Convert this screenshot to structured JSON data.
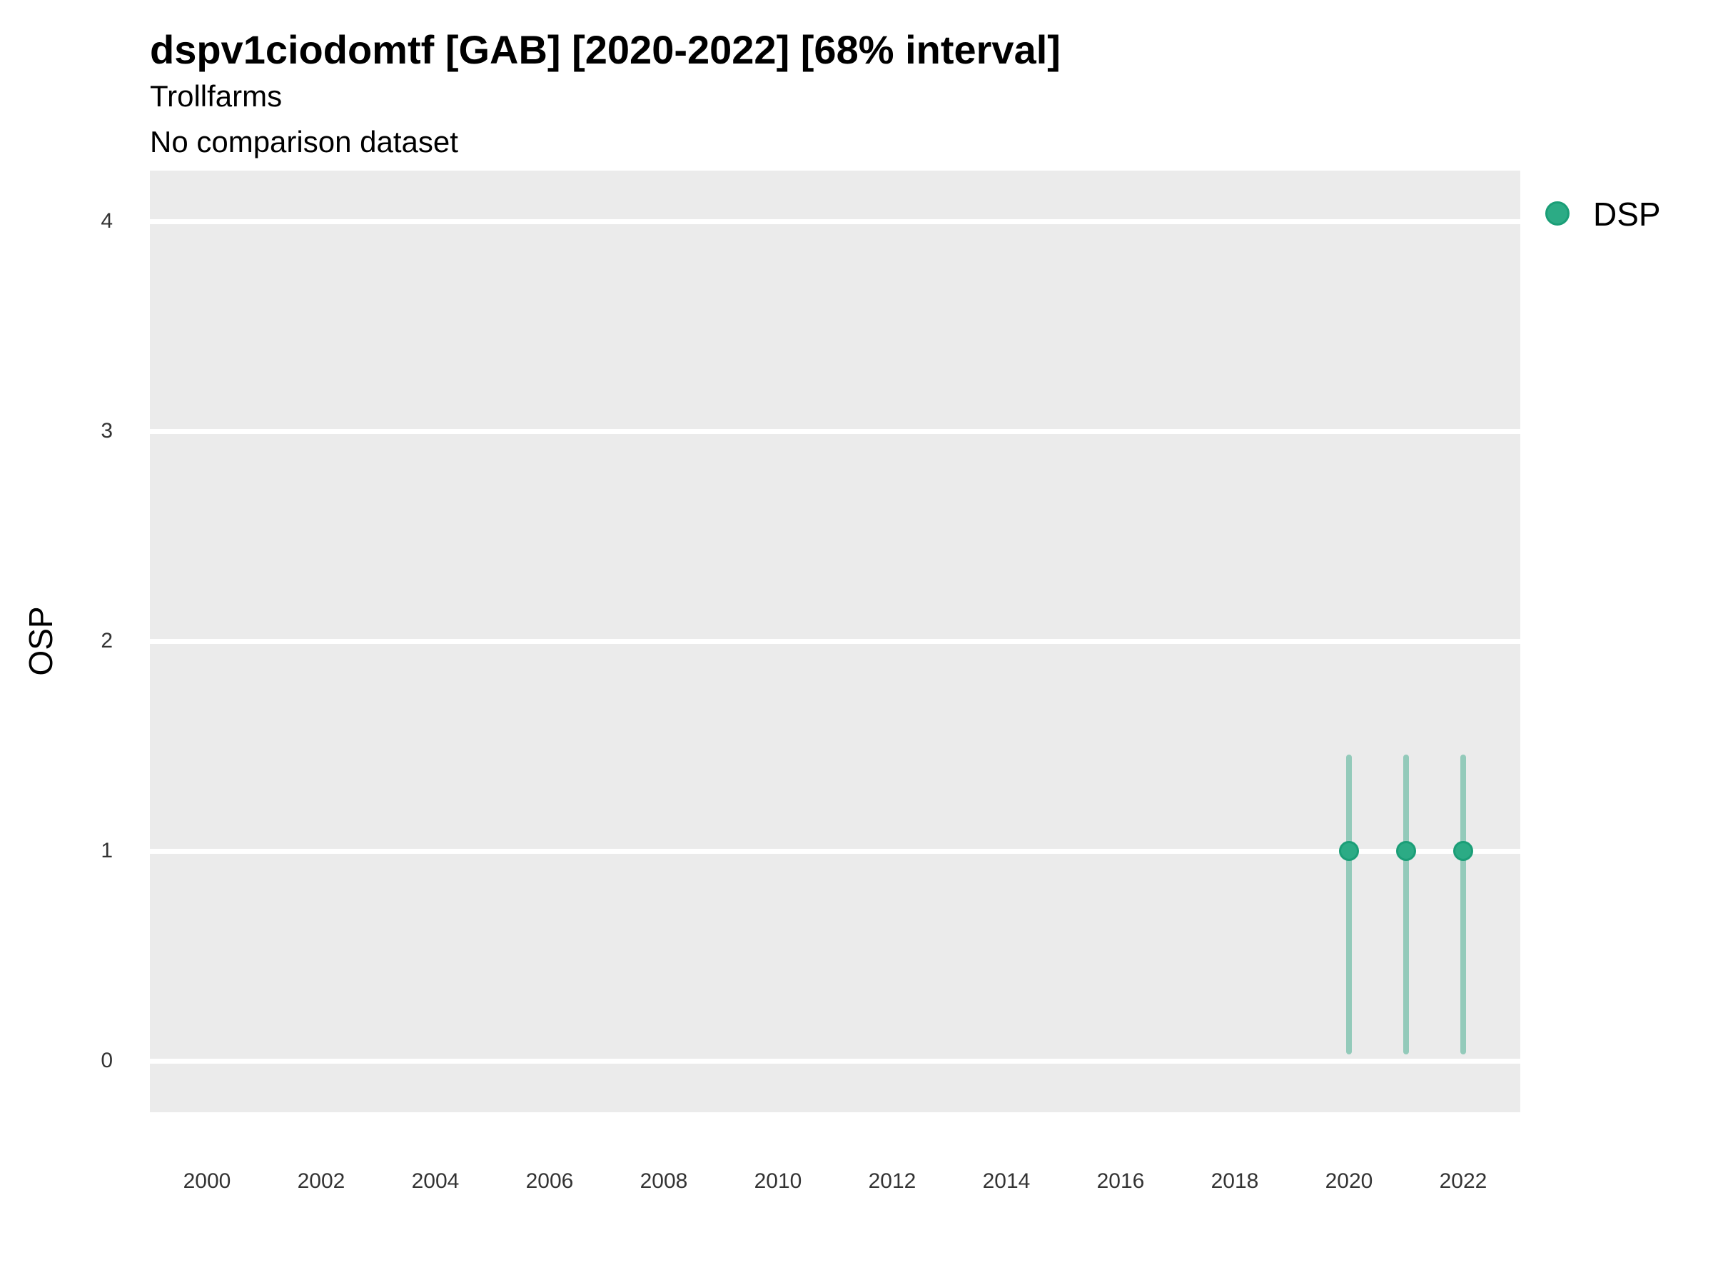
{
  "header": {
    "title": "dspv1ciodomtf [GAB] [2020-2022] [68% interval]",
    "subtitle": "Trollfarms",
    "comparison_note": "No comparison dataset"
  },
  "axes": {
    "y_label": "OSP",
    "x_label": "",
    "y_ticks": [
      0,
      1,
      2,
      3,
      4
    ],
    "x_ticks": [
      2000,
      2002,
      2004,
      2006,
      2008,
      2010,
      2012,
      2014,
      2016,
      2018,
      2020,
      2022
    ]
  },
  "legend": {
    "items": [
      {
        "label": "DSP",
        "fill": "#2cab85",
        "stroke": "#1b9e77"
      }
    ]
  },
  "colors": {
    "panel_background": "#ebebeb",
    "gridline": "#ffffff",
    "point_fill": "#2cab85",
    "point_stroke": "#1b9e77",
    "interval_bar": "rgba(27,158,119,0.42)",
    "text": "#000000",
    "tick_text": "#333333"
  },
  "chart_data": {
    "type": "scatter",
    "title": "dspv1ciodomtf [GAB] [2020-2022] [68% interval]",
    "subtitle": "Trollfarms",
    "note": "No comparison dataset",
    "xlabel": "",
    "ylabel": "OSP",
    "xlim": [
      1999.1,
      2023.0
    ],
    "ylim": [
      -0.25,
      4.25
    ],
    "x_ticks": [
      2000,
      2002,
      2004,
      2006,
      2008,
      2010,
      2012,
      2014,
      2016,
      2018,
      2020,
      2022
    ],
    "y_ticks": [
      0,
      1,
      2,
      3,
      4
    ],
    "grid": "horizontal-major-only",
    "legend_position": "right-top",
    "interval_level": "68%",
    "series": [
      {
        "name": "DSP",
        "points": [
          {
            "x": 2020,
            "y": 1.0,
            "low": 0.03,
            "high": 1.46
          },
          {
            "x": 2021,
            "y": 1.0,
            "low": 0.03,
            "high": 1.46
          },
          {
            "x": 2022,
            "y": 1.0,
            "low": 0.03,
            "high": 1.46
          }
        ]
      }
    ]
  }
}
